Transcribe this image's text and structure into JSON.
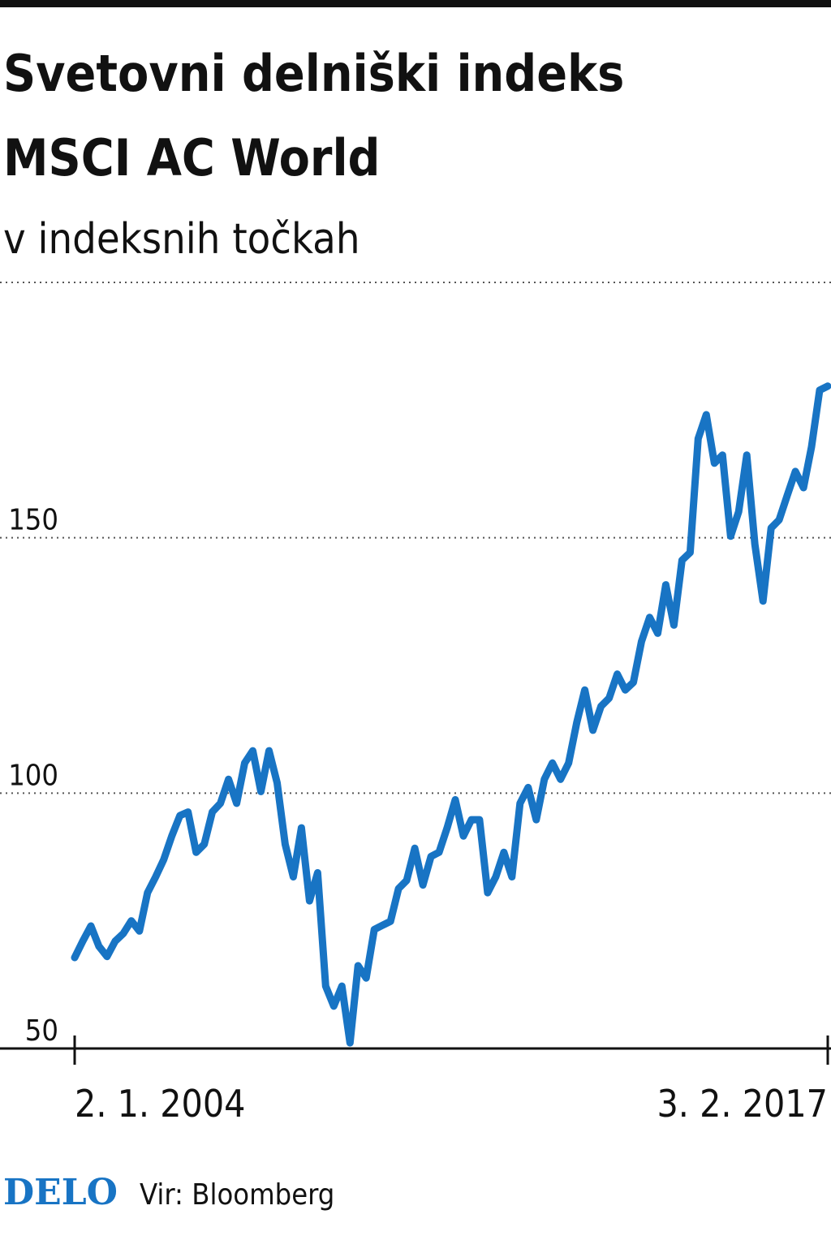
{
  "chart_data": {
    "type": "line",
    "title_lines": [
      "Svetovni delniški indeks",
      "MSCI AC World"
    ],
    "subtitle": "v indeksnih točkah",
    "categories": [
      "2. 1. 2004",
      null,
      null,
      null,
      null,
      null,
      null,
      null,
      null,
      null,
      null,
      null,
      null,
      null,
      null,
      null,
      null,
      null,
      null,
      null,
      null,
      null,
      null,
      null,
      null,
      null,
      null,
      null,
      null,
      null,
      null,
      null,
      null,
      null,
      null,
      null,
      null,
      null,
      null,
      null,
      null,
      null,
      null,
      null,
      null,
      null,
      null,
      null,
      null,
      null,
      null,
      null,
      null,
      null,
      null,
      null,
      null,
      null,
      null,
      null,
      null,
      null,
      null,
      null,
      null,
      null,
      null,
      null,
      null,
      null,
      null,
      null,
      null,
      null,
      null,
      null,
      null,
      null,
      null,
      null,
      null,
      null,
      null,
      null,
      null,
      null,
      null,
      null,
      null,
      null,
      null,
      null,
      null,
      "3. 2. 2017"
    ],
    "values": [
      67.8,
      71,
      74,
      70,
      68,
      71,
      72.5,
      75,
      73,
      80.5,
      83.6,
      87,
      91.6,
      95.6,
      96.3,
      88.4,
      90,
      96.3,
      98,
      102.7,
      98,
      105.9,
      108.3,
      100.3,
      108.3,
      102,
      90,
      83.6,
      93.2,
      78.9,
      84.4,
      62.2,
      58.3,
      62.2,
      51.1,
      66.2,
      63.8,
      73.3,
      74.1,
      74.9,
      81.3,
      82.9,
      89.2,
      82,
      87.6,
      88.4,
      93.2,
      98.7,
      91.6,
      94.8,
      94.8,
      80.5,
      83.6,
      88.4,
      83.6,
      98,
      101.1,
      94.8,
      102.7,
      105.9,
      102.7,
      105.9,
      113.8,
      120.2,
      112.3,
      117,
      118.6,
      123.3,
      120.2,
      121.7,
      129.7,
      134.4,
      131.3,
      140.8,
      132.9,
      145.6,
      147.1,
      169.4,
      174.1,
      164.6,
      166.2,
      150.3,
      155.1,
      166.2,
      148.7,
      137.6,
      151.9,
      153.5,
      158.3,
      163,
      159.8,
      167.8,
      178.9,
      179.7
    ],
    "color": "#1874c4",
    "ylim": [
      50,
      200
    ],
    "yticks": [
      50,
      100,
      150
    ],
    "grid": true,
    "brand": "DELO",
    "source": "Vir: Bloomberg"
  }
}
